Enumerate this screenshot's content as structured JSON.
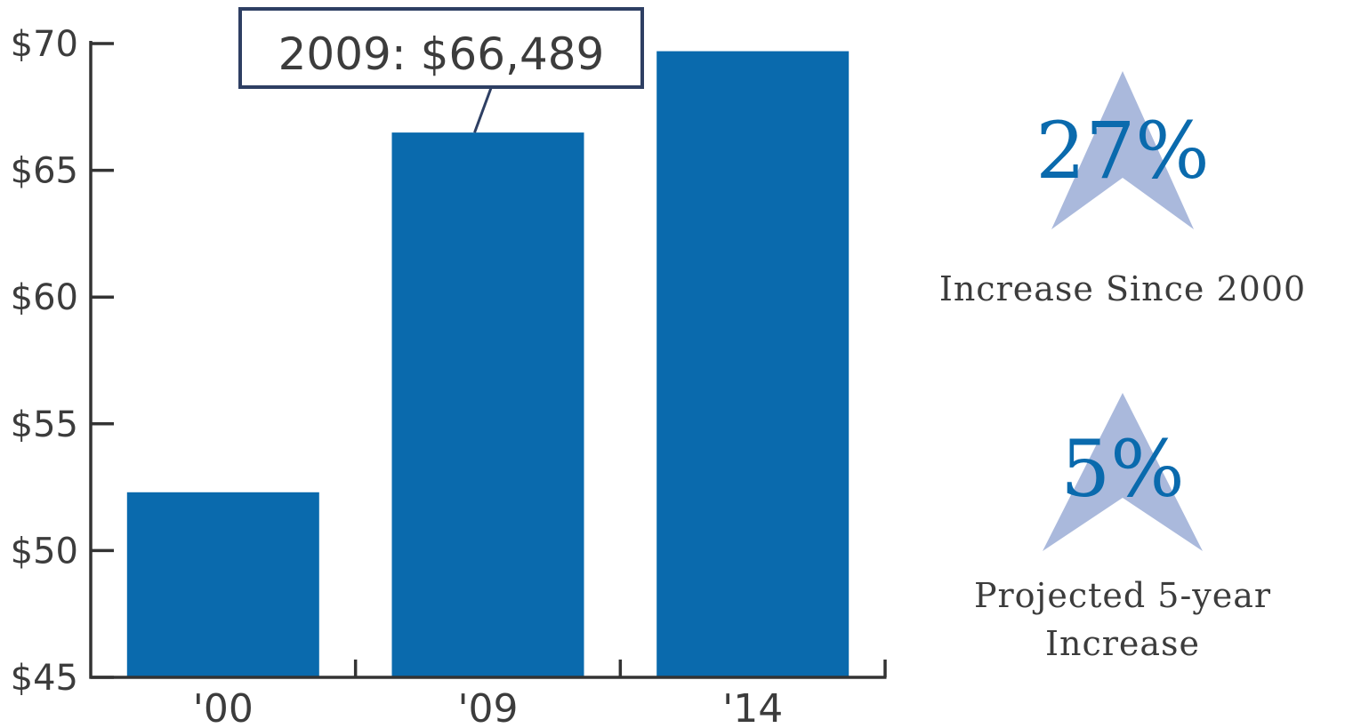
{
  "chart_data": {
    "type": "bar",
    "categories": [
      "'00",
      "'09",
      "'14"
    ],
    "values": [
      52.3,
      66.489,
      69.7
    ],
    "ylim": [
      45,
      70
    ],
    "y_ticks": [
      45,
      50,
      55,
      60,
      65,
      70
    ],
    "y_tick_labels": [
      "$45",
      "$50",
      "$55",
      "$60",
      "$65",
      "$70"
    ],
    "grid": false,
    "bar_color": "#0a6aad",
    "annotation": {
      "text": "2009: $66,489",
      "category": "'09"
    }
  },
  "stats": [
    {
      "value": "27%",
      "caption_lines": [
        "Increase Since 2000"
      ],
      "icon": "star-icon",
      "star_color": "#aab9dc"
    },
    {
      "value": "5%",
      "caption_lines": [
        "Projected 5-year",
        "Increase"
      ],
      "icon": "star-icon",
      "star_color": "#aab9dc"
    }
  ],
  "colors": {
    "axis": "#333333",
    "callout_border": "#2e3f63",
    "text": "#3c3c3c",
    "accent": "#0a6aad"
  }
}
